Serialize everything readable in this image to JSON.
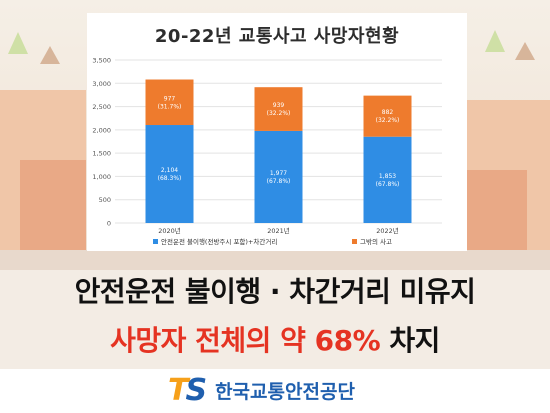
{
  "title": "20-22년 교통사고 사망자현황",
  "headline": {
    "line1": "안전운전 불이행 · 차간거리 미유지",
    "line2_red": "사망자 전체의 약 68%",
    "line2_black": "차지"
  },
  "logo": {
    "letter1": "T",
    "letter2": "S",
    "org_name": "한국교통안전공단"
  },
  "colors": {
    "accent_blue": "#2f8de4",
    "accent_orange": "#ee7b2d",
    "headline_red": "#e53322",
    "logo_orange": "#f6a01a",
    "logo_blue": "#1f5fae"
  },
  "chart_data": {
    "type": "bar",
    "stacked": true,
    "categories": [
      "2020년",
      "2021년",
      "2022년"
    ],
    "series": [
      {
        "name": "안전운전 불이행(전방주시 포함)+차간거리",
        "color": "#2f8de4",
        "values": [
          2104,
          1977,
          1853
        ],
        "value_labels": [
          "2,104",
          "1,977",
          "1,853"
        ],
        "percent_labels": [
          "(68.3%)",
          "(67.8%)",
          "(67.8%)"
        ]
      },
      {
        "name": "그밖의 사고",
        "color": "#ee7b2d",
        "values": [
          977,
          939,
          882
        ],
        "value_labels": [
          "977",
          "939",
          "882"
        ],
        "percent_labels": [
          "(31.7%)",
          "(32.2%)",
          "(32.2%)"
        ]
      }
    ],
    "ylim": [
      0,
      3500
    ],
    "yticks": [
      "0",
      "500",
      "1,000",
      "1,500",
      "2,000",
      "2,500",
      "3,000",
      "3,500"
    ],
    "grid": true,
    "legend_position": "bottom"
  }
}
